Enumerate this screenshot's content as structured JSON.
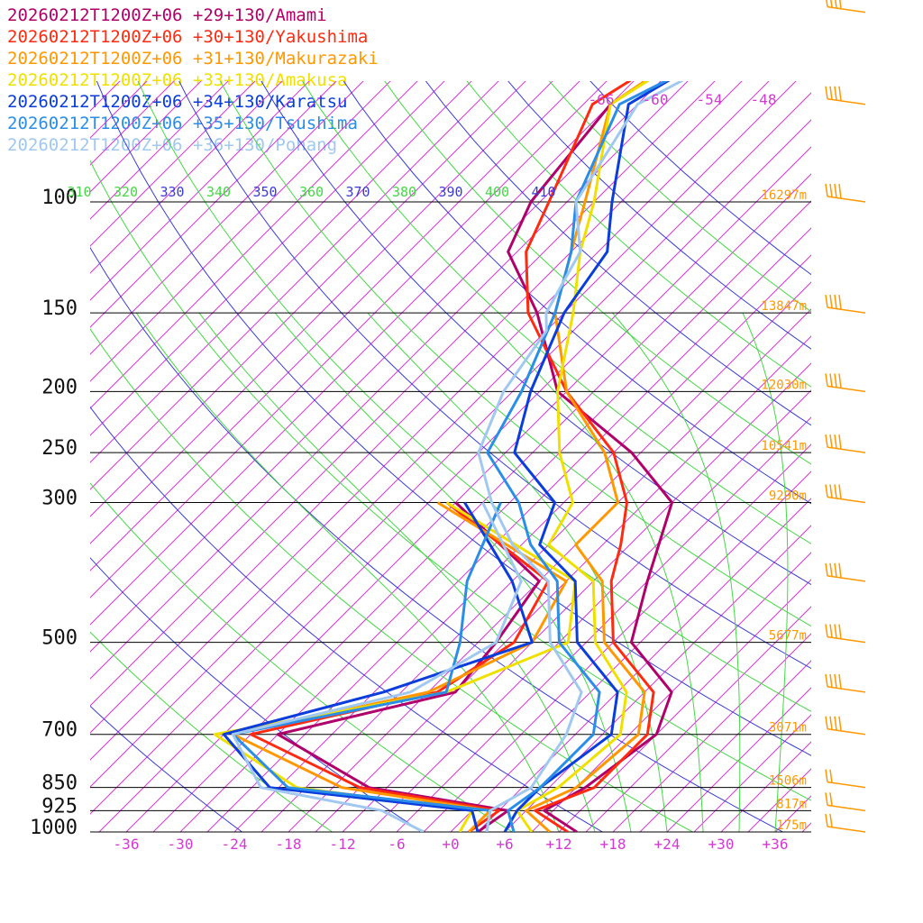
{
  "chart_data": {
    "type": "line",
    "title": "",
    "legend": [
      {
        "label": "20260212T1200Z+06 +29+130/Amami",
        "color": "#b0006a"
      },
      {
        "label": "20260212T1200Z+06 +30+130/Yakushima",
        "color": "#ff2a10"
      },
      {
        "label": "20260212T1200Z+06 +31+130/Makurazaki",
        "color": "#ff9800"
      },
      {
        "label": "20260212T1200Z+06 +33+130/Amakusa",
        "color": "#f0e000"
      },
      {
        "label": "20260212T1200Z+06 +34+130/Karatsu",
        "color": "#0a3ddc"
      },
      {
        "label": "20260212T1200Z+06 +35+130/Tsushima",
        "color": "#2a8ee8"
      },
      {
        "label": "20260212T1200Z+06 +36+130/Pohang",
        "color": "#a0c8f0"
      }
    ],
    "pressure_levels": [
      "100",
      "150",
      "200",
      "250",
      "300",
      "500",
      "700",
      "850",
      "925",
      "1000"
    ],
    "heights": [
      "16297m",
      "13847m",
      "12030m",
      "10541m",
      "9290m",
      "5677m",
      "3071m",
      "1506m",
      "817m",
      "175m"
    ],
    "temperature_ticks": [
      "-36",
      "-30",
      "-24",
      "-18",
      "-12",
      "-6",
      "+0",
      "+6",
      "+12",
      "+18",
      "+24",
      "+30",
      "+36"
    ],
    "upper_isotherm_labels": [
      "-66",
      "-60",
      "-54",
      "-48"
    ],
    "theta_labels": [
      "310",
      "320",
      "330",
      "340",
      "350",
      "360",
      "370",
      "380",
      "390",
      "400",
      "410"
    ],
    "plot_range": {
      "p_top": 100,
      "p_bottom": 1000,
      "t_left_at_1000": -40,
      "t_right_at_1000": 40
    },
    "grid": true,
    "legend_placement": "top-left",
    "series": [
      {
        "name": "Amami",
        "color": "#b0006a",
        "temperature": [
          [
            1000,
            14
          ],
          [
            925,
            8
          ],
          [
            850,
            10
          ],
          [
            700,
            12
          ],
          [
            600,
            9
          ],
          [
            500,
            -1
          ],
          [
            400,
            -6
          ],
          [
            300,
            -12
          ],
          [
            250,
            -22
          ],
          [
            200,
            -37
          ],
          [
            150,
            -48
          ],
          [
            120,
            -58
          ],
          [
            100,
            -61
          ],
          [
            70,
            -63
          ],
          [
            50,
            -58
          ]
        ],
        "dewpoint": [
          [
            1000,
            3
          ],
          [
            925,
            4
          ],
          [
            850,
            -14
          ],
          [
            700,
            -30
          ],
          [
            600,
            -15
          ],
          [
            500,
            -16
          ],
          [
            400,
            -18
          ],
          [
            300,
            -36
          ]
        ]
      },
      {
        "name": "Yakushima",
        "color": "#ff2a10",
        "temperature": [
          [
            1000,
            13
          ],
          [
            925,
            7
          ],
          [
            850,
            11
          ],
          [
            700,
            11
          ],
          [
            600,
            7
          ],
          [
            500,
            -3
          ],
          [
            400,
            -10
          ],
          [
            350,
            -13
          ],
          [
            300,
            -17
          ],
          [
            250,
            -24
          ],
          [
            200,
            -36
          ],
          [
            150,
            -49
          ],
          [
            120,
            -56
          ],
          [
            100,
            -59
          ],
          [
            70,
            -65
          ],
          [
            50,
            -59
          ]
        ],
        "dewpoint": [
          [
            1000,
            2
          ],
          [
            925,
            3
          ],
          [
            850,
            -15
          ],
          [
            700,
            -33
          ],
          [
            600,
            -17
          ],
          [
            500,
            -14
          ],
          [
            400,
            -17
          ],
          [
            300,
            -37
          ]
        ]
      },
      {
        "name": "Makurazaki",
        "color": "#ff9800",
        "temperature": [
          [
            1000,
            11
          ],
          [
            925,
            6
          ],
          [
            850,
            9
          ],
          [
            700,
            10
          ],
          [
            600,
            6
          ],
          [
            500,
            -4
          ],
          [
            400,
            -11
          ],
          [
            350,
            -18
          ],
          [
            300,
            -18
          ],
          [
            250,
            -25
          ],
          [
            200,
            -36
          ],
          [
            150,
            -46
          ],
          [
            120,
            -51
          ],
          [
            100,
            -55
          ],
          [
            70,
            -63
          ],
          [
            50,
            -58
          ]
        ],
        "dewpoint": [
          [
            1000,
            2
          ],
          [
            925,
            2
          ],
          [
            850,
            -17
          ],
          [
            700,
            -35
          ],
          [
            600,
            -18
          ],
          [
            500,
            -12
          ],
          [
            400,
            -15
          ],
          [
            300,
            -38
          ]
        ]
      },
      {
        "name": "Amakusa",
        "color": "#f0e000",
        "temperature": [
          [
            1000,
            9
          ],
          [
            925,
            5
          ],
          [
            850,
            7
          ],
          [
            700,
            8
          ],
          [
            600,
            4
          ],
          [
            500,
            -5
          ],
          [
            400,
            -12
          ],
          [
            350,
            -21
          ],
          [
            300,
            -23
          ],
          [
            250,
            -30
          ],
          [
            200,
            -37
          ],
          [
            150,
            -44
          ],
          [
            120,
            -50
          ],
          [
            100,
            -54
          ],
          [
            70,
            -63
          ],
          [
            50,
            -57
          ]
        ],
        "dewpoint": [
          [
            1000,
            1
          ],
          [
            925,
            0
          ],
          [
            850,
            -22
          ],
          [
            700,
            -37
          ],
          [
            600,
            -16
          ],
          [
            500,
            -8
          ],
          [
            400,
            -14
          ],
          [
            300,
            -37
          ]
        ]
      },
      {
        "name": "Karatsu",
        "color": "#0a3ddc",
        "temperature": [
          [
            1000,
            6
          ],
          [
            925,
            5
          ],
          [
            850,
            5
          ],
          [
            700,
            7
          ],
          [
            600,
            3
          ],
          [
            500,
            -7
          ],
          [
            400,
            -14
          ],
          [
            350,
            -22
          ],
          [
            300,
            -25
          ],
          [
            250,
            -35
          ],
          [
            200,
            -40
          ],
          [
            150,
            -45
          ],
          [
            120,
            -47
          ],
          [
            100,
            -52
          ],
          [
            70,
            -61
          ],
          [
            50,
            -54
          ]
        ],
        "dewpoint": [
          [
            1000,
            3
          ],
          [
            925,
            0
          ],
          [
            850,
            -25
          ],
          [
            700,
            -36
          ],
          [
            600,
            -23
          ],
          [
            500,
            -12
          ],
          [
            400,
            -21
          ],
          [
            300,
            -35
          ]
        ]
      },
      {
        "name": "Tsushima",
        "color": "#2a8ee8",
        "temperature": [
          [
            1000,
            7
          ],
          [
            925,
            4
          ],
          [
            850,
            5
          ],
          [
            700,
            5
          ],
          [
            600,
            1
          ],
          [
            500,
            -9
          ],
          [
            400,
            -16
          ],
          [
            350,
            -23
          ],
          [
            300,
            -29
          ],
          [
            250,
            -38
          ],
          [
            200,
            -41
          ],
          [
            150,
            -46
          ],
          [
            120,
            -51
          ],
          [
            100,
            -56
          ],
          [
            70,
            -62
          ],
          [
            50,
            -52
          ]
        ],
        "dewpoint": [
          [
            1000,
            4
          ],
          [
            925,
            2
          ],
          [
            850,
            -23
          ],
          [
            700,
            -35
          ],
          [
            600,
            -16
          ],
          [
            500,
            -20
          ],
          [
            400,
            -26
          ],
          [
            300,
            -31
          ]
        ]
      },
      {
        "name": "Pohang",
        "color": "#a0c8f0",
        "temperature": [
          [
            1000,
            4
          ],
          [
            925,
            2
          ],
          [
            850,
            4
          ],
          [
            700,
            2
          ],
          [
            600,
            -1
          ],
          [
            500,
            -10
          ],
          [
            400,
            -17
          ],
          [
            350,
            -25
          ],
          [
            300,
            -32
          ],
          [
            250,
            -39
          ],
          [
            200,
            -43
          ],
          [
            160,
            -45
          ],
          [
            150,
            -47
          ],
          [
            120,
            -50
          ],
          [
            100,
            -56
          ],
          [
            70,
            -60
          ],
          [
            50,
            -51
          ]
        ],
        "dewpoint": [
          [
            1000,
            -3
          ],
          [
            925,
            -10
          ],
          [
            850,
            -26
          ],
          [
            700,
            -35
          ],
          [
            600,
            -20
          ],
          [
            500,
            -16
          ],
          [
            400,
            -20
          ],
          [
            300,
            -33
          ]
        ]
      }
    ],
    "wind_barbs": {
      "color": "#ff9800",
      "levels": [
        "50",
        "70",
        "100",
        "150",
        "200",
        "250",
        "300",
        "400",
        "500",
        "600",
        "700",
        "850",
        "925",
        "1000"
      ]
    }
  }
}
